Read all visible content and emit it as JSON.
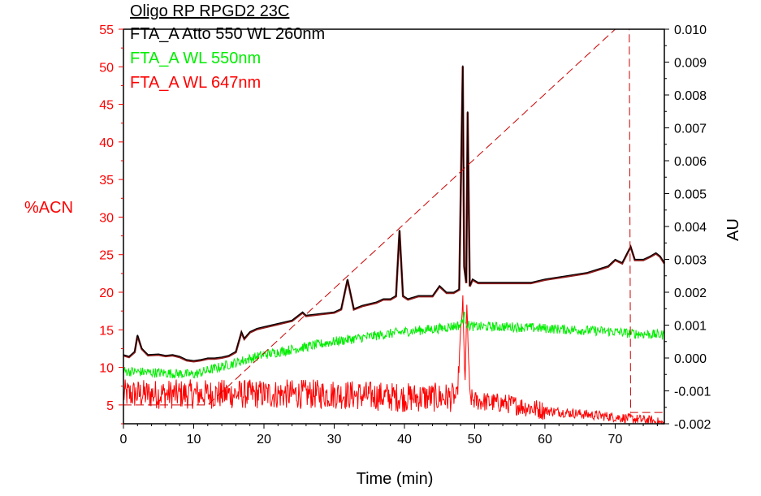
{
  "chart_data": {
    "type": "line",
    "title": "Oligo RP RPGD2 23C",
    "xlabel": "Time (min)",
    "ylabel_left": "%ACN",
    "ylabel_right": "AU",
    "xlim": [
      0,
      77
    ],
    "ylim_left": [
      2.5,
      55
    ],
    "ylim_right": [
      -0.002,
      0.01
    ],
    "x_ticks": [
      0,
      10,
      20,
      30,
      40,
      50,
      60,
      70
    ],
    "y_left_ticks": [
      5,
      10,
      15,
      20,
      25,
      30,
      35,
      40,
      45,
      50,
      55
    ],
    "y_right_ticks": [
      "-0.002",
      "-0.001",
      "0.000",
      "0.001",
      "0.002",
      "0.003",
      "0.004",
      "0.005",
      "0.006",
      "0.007",
      "0.008",
      "0.009",
      "0.010"
    ],
    "legend_position": "top-left",
    "grid": false,
    "colors": {
      "trace_260": "#000000",
      "trace_260_overlay": "#8b1a1a",
      "trace_550": "#00ee00",
      "trace_647": "#ff0000",
      "gradient": "#cc0000",
      "left_axis": "#ff0000",
      "right_axis": "#000000"
    },
    "series": [
      {
        "name": "FTA_A Atto 550 WL 260nm",
        "axis": "right",
        "style": "solid",
        "x": [
          0,
          0.8,
          1.6,
          2.0,
          2.6,
          3.5,
          5,
          6,
          7,
          8,
          9,
          10,
          11,
          12,
          13,
          14,
          15,
          16,
          16.8,
          17.2,
          18,
          19,
          20,
          22,
          24,
          25.5,
          26,
          28,
          30,
          31,
          31.9,
          32.8,
          34,
          36,
          37,
          38,
          38.8,
          39.3,
          39.8,
          40.5,
          42,
          44,
          45,
          46,
          47,
          47.8,
          48.3,
          48.5,
          48.8,
          49.0,
          49.3,
          49.7,
          50.5,
          52,
          55,
          58,
          60,
          63,
          66,
          69,
          70,
          71,
          72.2,
          72.8,
          74,
          75,
          75.8,
          76.4,
          77
        ],
        "y": [
          0.0001,
          5e-05,
          0.0002,
          0.0007,
          0.0003,
          0.0001,
          0.00012,
          8e-05,
          0.0001,
          5e-05,
          -5e-05,
          -8e-05,
          -5e-05,
          0.0,
          0.0,
          3e-05,
          8e-05,
          0.0002,
          0.0008,
          0.0006,
          0.0008,
          0.0009,
          0.00095,
          0.00105,
          0.00115,
          0.0014,
          0.0013,
          0.00135,
          0.0014,
          0.0015,
          0.0024,
          0.0015,
          0.0016,
          0.0017,
          0.0018,
          0.0018,
          0.0019,
          0.0039,
          0.0019,
          0.0018,
          0.0019,
          0.0019,
          0.0022,
          0.002,
          0.002,
          0.0021,
          0.0089,
          0.0028,
          0.0023,
          0.0075,
          0.0022,
          0.0024,
          0.0023,
          0.0023,
          0.0023,
          0.0023,
          0.0024,
          0.0025,
          0.0026,
          0.0028,
          0.003,
          0.0029,
          0.0034,
          0.003,
          0.003,
          0.0031,
          0.0032,
          0.0031,
          0.0029
        ]
      },
      {
        "name": "FTA_A WL 550nm",
        "axis": "right",
        "style": "noisy",
        "x": [
          0,
          5,
          10,
          15,
          20,
          25,
          30,
          35,
          40,
          45,
          48,
          48.5,
          49,
          50,
          55,
          60,
          65,
          70,
          72,
          77
        ],
        "y": [
          -0.0004,
          -0.00045,
          -0.0005,
          -0.0002,
          0.0001,
          0.0003,
          0.0005,
          0.00065,
          0.0008,
          0.0009,
          0.001,
          0.0013,
          0.001,
          0.00095,
          0.00095,
          0.0009,
          0.00085,
          0.0008,
          0.00075,
          0.0007
        ]
      },
      {
        "name": "FTA_A WL 647nm",
        "axis": "right",
        "style": "noisy",
        "x": [
          0,
          10,
          20,
          30,
          40,
          45,
          47.5,
          48.3,
          48.6,
          48.9,
          49.3,
          50,
          55,
          60,
          65,
          70,
          75,
          77
        ],
        "y": [
          -0.0011,
          -0.0011,
          -0.0011,
          -0.0011,
          -0.0012,
          -0.0012,
          -0.0012,
          0.0018,
          -0.0008,
          0.0015,
          -0.0012,
          -0.0013,
          -0.0014,
          -0.0016,
          -0.0017,
          -0.0018,
          -0.0019,
          -0.002
        ]
      },
      {
        "name": "%ACN gradient",
        "axis": "left",
        "style": "dashed",
        "x": [
          0,
          12,
          70,
          72,
          72.2,
          77
        ],
        "y": [
          5,
          5,
          55,
          55,
          4,
          4
        ]
      }
    ]
  }
}
